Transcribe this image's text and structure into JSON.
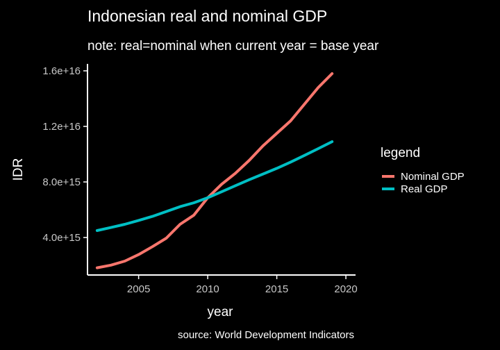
{
  "chart_data": {
    "type": "line",
    "title": "Indonesian real and nominal GDP",
    "subtitle": "note: real=nominal when current year = base year",
    "caption": "source: World Development Indicators",
    "xlabel": "year",
    "ylabel": "IDR",
    "xlim": [
      2001.3,
      2020.7
    ],
    "ylim": [
      1300000000000000.0,
      1.65e+16
    ],
    "x_ticks": [
      2005,
      2010,
      2015,
      2020
    ],
    "x_tick_labels": [
      "2005",
      "2010",
      "2015",
      "2020"
    ],
    "y_ticks": [
      4000000000000000.0,
      8000000000000000.0,
      1.2e+16,
      1.6e+16
    ],
    "y_tick_labels": [
      "4.0e+15",
      "8.0e+15",
      "1.2e+16",
      "1.6e+16"
    ],
    "grid": false,
    "legend": {
      "title": "legend",
      "placement": "right"
    },
    "x": [
      2002,
      2003,
      2004,
      2005,
      2006,
      2007,
      2008,
      2009,
      2010,
      2011,
      2012,
      2013,
      2014,
      2015,
      2016,
      2017,
      2018,
      2019
    ],
    "series": [
      {
        "name": "Nominal GDP",
        "color": "#f8766d",
        "values": [
          1820000000000000.0,
          2010000000000000.0,
          2300000000000000.0,
          2770000000000000.0,
          3340000000000000.0,
          3950000000000000.0,
          4950000000000000.0,
          5610000000000000.0,
          6860000000000000.0,
          7830000000000000.0,
          8620000000000000.0,
          9550000000000000.0,
          1.06e+16,
          1.15e+16,
          1.24e+16,
          1.36e+16,
          1.48e+16,
          1.58e+16
        ]
      },
      {
        "name": "Real GDP",
        "color": "#00bfc4",
        "values": [
          4500000000000000.0,
          4720000000000000.0,
          4950000000000000.0,
          5230000000000000.0,
          5520000000000000.0,
          5870000000000000.0,
          6220000000000000.0,
          6500000000000000.0,
          6860000000000000.0,
          7290000000000000.0,
          7730000000000000.0,
          8160000000000000.0,
          8570000000000000.0,
          8980000000000000.0,
          9430000000000000.0,
          9910000000000000.0,
          1.04e+16,
          1.09e+16
        ]
      }
    ]
  }
}
